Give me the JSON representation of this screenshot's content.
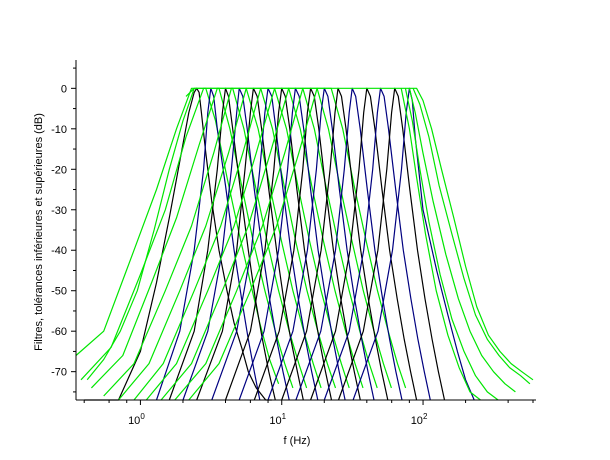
{
  "chart_data": {
    "type": "line",
    "title": "",
    "xlabel": "f (Hz)",
    "ylabel": "Filtres, tolérances inférieures et supérieures (dB)",
    "x_scale": "log",
    "xlim": [
      0.35,
      630
    ],
    "ylim": [
      -77,
      7
    ],
    "x_ticks": [
      {
        "value": 1,
        "base": "10",
        "exp": "0"
      },
      {
        "value": 10,
        "base": "10",
        "exp": "1"
      },
      {
        "value": 100,
        "base": "10",
        "exp": "2"
      }
    ],
    "y_ticks": [
      {
        "value": 0,
        "label": "0"
      },
      {
        "value": -10,
        "label": "-10"
      },
      {
        "value": -20,
        "label": "-20"
      },
      {
        "value": -30,
        "label": "-30"
      },
      {
        "value": -40,
        "label": "-40"
      },
      {
        "value": -50,
        "label": "-50"
      },
      {
        "value": -60,
        "label": "-60"
      },
      {
        "value": -70,
        "label": "-70"
      }
    ],
    "grid": false,
    "legend": "none",
    "center_frequencies": [
      2.5,
      3.15,
      4,
      5,
      6.3,
      8,
      10,
      12.5,
      16,
      20,
      25,
      31.5,
      40,
      50,
      63,
      80
    ],
    "series": [
      {
        "color": "#000000",
        "x": [
          0.4,
          0.7,
          1.0,
          1.3,
          1.6,
          1.9,
          2.2,
          2.4,
          2.5,
          2.6,
          2.7,
          2.9,
          3.2,
          3.6,
          4.1,
          4.6,
          5.2,
          5.8,
          6.6,
          7.7,
          8.5
        ],
        "y": [
          -77,
          -77,
          -65,
          -48,
          -32,
          -18,
          -6,
          -1,
          0,
          -1,
          -6,
          -16,
          -28,
          -40,
          -50,
          -58,
          -64,
          -70,
          -74,
          -77,
          -77
        ]
      },
      {
        "color": "#00e600",
        "x": [
          0.35,
          0.55,
          0.9,
          1.3,
          1.8,
          2.3,
          2.9,
          3.4,
          4.1,
          5.0,
          6.0,
          7.0,
          8.2,
          9.5
        ],
        "y": [
          -66,
          -60,
          -40,
          -25,
          -10,
          0,
          0,
          -8,
          -22,
          -36,
          -48,
          -58,
          -67,
          -73
        ]
      },
      {
        "color": "#000080",
        "x": [
          1.3,
          1.9,
          2.4,
          2.8,
          3.0,
          3.15,
          3.3,
          3.5,
          4.0,
          4.6,
          5.2,
          5.8,
          6.4,
          7.0
        ],
        "y": [
          -77,
          -60,
          -40,
          -20,
          -6,
          0,
          -2,
          -10,
          -24,
          -40,
          -52,
          -62,
          -70,
          -77
        ]
      },
      {
        "color": "#00e600",
        "x": [
          0.38,
          0.62,
          1.0,
          1.5,
          2.1,
          2.8,
          3.6,
          4.3,
          5.2,
          6.3,
          7.6,
          9.0,
          10.5,
          12.0
        ],
        "y": [
          -72,
          -64,
          -46,
          -30,
          -12,
          0,
          0,
          -10,
          -24,
          -38,
          -50,
          -60,
          -68,
          -74
        ]
      },
      {
        "color": "#000000",
        "x": [
          1.6,
          2.4,
          3.0,
          3.5,
          3.8,
          4.0,
          4.2,
          4.5,
          5.1,
          5.8,
          6.5,
          7.3,
          8.1,
          9.0
        ],
        "y": [
          -77,
          -60,
          -40,
          -20,
          -6,
          0,
          -2,
          -10,
          -25,
          -40,
          -52,
          -62,
          -70,
          -77
        ]
      },
      {
        "color": "#00e600",
        "x": [
          0.45,
          0.75,
          1.2,
          1.8,
          2.6,
          3.5,
          4.5,
          5.4,
          6.5,
          7.9,
          9.5,
          11.3,
          13.2,
          15.0
        ],
        "y": [
          -74,
          -66,
          -48,
          -32,
          -14,
          0,
          0,
          -10,
          -24,
          -38,
          -50,
          -60,
          -68,
          -74
        ]
      },
      {
        "color": "#000080",
        "x": [
          2.0,
          3.0,
          3.8,
          4.4,
          4.8,
          5.0,
          5.3,
          5.7,
          6.4,
          7.3,
          8.2,
          9.2,
          10.2,
          11.3
        ],
        "y": [
          -77,
          -60,
          -40,
          -20,
          -6,
          0,
          -2,
          -10,
          -25,
          -40,
          -52,
          -62,
          -70,
          -77
        ]
      },
      {
        "color": "#00e600",
        "x": [
          0.55,
          0.9,
          1.5,
          2.3,
          3.3,
          4.4,
          5.6,
          6.8,
          8.2,
          10.0,
          12.0,
          14.3,
          16.7,
          19.0
        ],
        "y": [
          -76,
          -68,
          -50,
          -34,
          -16,
          0,
          0,
          -10,
          -24,
          -38,
          -50,
          -60,
          -68,
          -74
        ]
      },
      {
        "color": "#000000",
        "x": [
          2.5,
          3.8,
          4.8,
          5.5,
          6.0,
          6.3,
          6.7,
          7.2,
          8.1,
          9.2,
          10.3,
          11.6,
          12.9,
          14.2
        ],
        "y": [
          -77,
          -60,
          -40,
          -20,
          -6,
          0,
          -2,
          -10,
          -25,
          -40,
          -52,
          -62,
          -70,
          -77
        ]
      },
      {
        "color": "#00e600",
        "x": [
          0.7,
          1.15,
          1.9,
          2.9,
          4.2,
          5.6,
          7.1,
          8.6,
          10.4,
          12.6,
          15.1,
          18.0,
          21.0,
          24.0
        ],
        "y": [
          -77,
          -68,
          -50,
          -34,
          -16,
          0,
          0,
          -10,
          -24,
          -38,
          -50,
          -60,
          -68,
          -74
        ]
      },
      {
        "color": "#000080",
        "x": [
          3.2,
          4.8,
          6.1,
          7.0,
          7.6,
          8.0,
          8.5,
          9.1,
          10.2,
          11.6,
          13.1,
          14.7,
          16.3,
          18.0
        ],
        "y": [
          -77,
          -60,
          -40,
          -20,
          -6,
          0,
          -2,
          -10,
          -25,
          -40,
          -52,
          -62,
          -70,
          -77
        ]
      },
      {
        "color": "#00e600",
        "x": [
          0.9,
          1.45,
          2.4,
          3.7,
          5.3,
          7.1,
          8.9,
          10.8,
          13.0,
          15.8,
          19.0,
          22.6,
          26.4,
          30.0
        ],
        "y": [
          -77,
          -68,
          -50,
          -34,
          -16,
          0,
          0,
          -10,
          -24,
          -38,
          -50,
          -60,
          -68,
          -74
        ]
      },
      {
        "color": "#000000",
        "x": [
          4.0,
          6.0,
          7.6,
          8.8,
          9.5,
          10.0,
          10.6,
          11.4,
          12.8,
          14.5,
          16.4,
          18.4,
          20.4,
          22.5
        ],
        "y": [
          -77,
          -60,
          -40,
          -20,
          -6,
          0,
          -2,
          -10,
          -25,
          -40,
          -52,
          -62,
          -70,
          -77
        ]
      },
      {
        "color": "#00e600",
        "x": [
          1.1,
          1.8,
          3.0,
          4.6,
          6.6,
          8.9,
          11.2,
          13.5,
          16.3,
          19.8,
          23.8,
          28.3,
          33.0,
          37.6
        ],
        "y": [
          -77,
          -68,
          -50,
          -34,
          -16,
          0,
          0,
          -10,
          -24,
          -38,
          -50,
          -60,
          -68,
          -74
        ]
      },
      {
        "color": "#000080",
        "x": [
          5.0,
          7.5,
          9.5,
          11.0,
          11.9,
          12.5,
          13.3,
          14.3,
          16.0,
          18.1,
          20.5,
          23.0,
          25.5,
          28.1
        ],
        "y": [
          -77,
          -60,
          -40,
          -20,
          -6,
          0,
          -2,
          -10,
          -25,
          -40,
          -52,
          -62,
          -70,
          -77
        ]
      },
      {
        "color": "#00e600",
        "x": [
          1.4,
          2.3,
          3.8,
          5.8,
          8.3,
          11.2,
          14.1,
          17.0,
          20.5,
          25.0,
          30.0,
          35.7,
          41.6,
          47.4
        ],
        "y": [
          -77,
          -68,
          -50,
          -34,
          -16,
          0,
          0,
          -10,
          -24,
          -38,
          -50,
          -60,
          -68,
          -74
        ]
      },
      {
        "color": "#000000",
        "x": [
          6.4,
          9.6,
          12.2,
          14.1,
          15.2,
          16.0,
          17.0,
          18.3,
          20.5,
          23.2,
          26.2,
          29.4,
          32.6,
          36.0
        ],
        "y": [
          -77,
          -60,
          -40,
          -20,
          -6,
          0,
          -2,
          -10,
          -25,
          -40,
          -52,
          -62,
          -70,
          -77
        ]
      },
      {
        "color": "#00e600",
        "x": [
          1.75,
          2.9,
          4.8,
          7.3,
          10.5,
          14.1,
          17.8,
          21.4,
          25.8,
          31.5,
          37.8,
          45.0,
          52.4,
          59.7
        ],
        "y": [
          -77,
          -68,
          -50,
          -34,
          -16,
          0,
          0,
          -10,
          -24,
          -38,
          -50,
          -60,
          -68,
          -74
        ]
      },
      {
        "color": "#000080",
        "x": [
          8.0,
          12.0,
          15.2,
          17.6,
          19.0,
          20.0,
          21.2,
          22.8,
          25.6,
          29.0,
          32.8,
          36.8,
          40.8,
          45.0
        ],
        "y": [
          -77,
          -60,
          -40,
          -20,
          -6,
          0,
          -2,
          -10,
          -25,
          -40,
          -52,
          -62,
          -70,
          -77
        ]
      },
      {
        "color": "#00e600",
        "x": [
          2.2,
          3.6,
          6.0,
          9.2,
          13.2,
          17.8,
          22.4,
          27.0,
          32.5,
          39.7,
          47.6,
          56.7,
          66.0,
          75.2
        ],
        "y": [
          -77,
          -68,
          -50,
          -34,
          -16,
          0,
          0,
          -10,
          -24,
          -38,
          -50,
          -60,
          -68,
          -74
        ]
      },
      {
        "color": "#000000",
        "x": [
          10.0,
          15.0,
          19.0,
          22.0,
          23.8,
          25.0,
          26.5,
          28.5,
          32.0,
          36.2,
          41.0,
          46.0,
          51.0,
          56.3
        ],
        "y": [
          -77,
          -60,
          -40,
          -20,
          -6,
          0,
          -2,
          -10,
          -25,
          -40,
          -52,
          -62,
          -70,
          -77
        ]
      },
      {
        "color": "#000080",
        "x": [
          12.6,
          18.9,
          24.0,
          27.7,
          30.0,
          31.5,
          33.4,
          35.9,
          40.3,
          45.6,
          51.7,
          58.0,
          64.3,
          71.0
        ],
        "y": [
          -77,
          -60,
          -40,
          -20,
          -6,
          0,
          -2,
          -10,
          -25,
          -40,
          -52,
          -62,
          -70,
          -77
        ]
      },
      {
        "color": "#000000",
        "x": [
          16.0,
          24.0,
          30.4,
          35.2,
          38.0,
          40.0,
          42.4,
          45.6,
          51.2,
          58.0,
          65.6,
          73.6,
          81.6,
          90.0
        ],
        "y": [
          -77,
          -60,
          -40,
          -20,
          -6,
          0,
          -2,
          -10,
          -25,
          -40,
          -52,
          -62,
          -70,
          -77
        ]
      },
      {
        "color": "#000080",
        "x": [
          20.0,
          30.0,
          38.0,
          44.0,
          47.5,
          50.0,
          53.0,
          57.0,
          64.0,
          72.5,
          82.0,
          92.0,
          102.0,
          112.5
        ],
        "y": [
          -77,
          -60,
          -40,
          -20,
          -6,
          0,
          -2,
          -10,
          -25,
          -40,
          -52,
          -62,
          -70,
          -77
        ]
      },
      {
        "color": "#000000",
        "x": [
          25.2,
          37.8,
          47.9,
          55.4,
          59.9,
          63.0,
          66.8,
          71.8,
          80.6,
          91.4,
          103.3,
          115.9,
          128.5,
          141.8
        ],
        "y": [
          -77,
          -60,
          -40,
          -20,
          -6,
          0,
          -2,
          -10,
          -25,
          -40,
          -52,
          -62,
          -70,
          -77
        ]
      },
      {
        "color": "#000080",
        "x": [
          32.0,
          48.0,
          60.8,
          70.4,
          76.0,
          80.0,
          84.0,
          88.0,
          100.0,
          125.0,
          150.0,
          175.0,
          200.0,
          230.0
        ],
        "y": [
          -77,
          -60,
          -40,
          -20,
          -6,
          0,
          -3,
          -12,
          -30,
          -45,
          -56,
          -65,
          -72,
          -77
        ]
      },
      {
        "color": "#00e600",
        "x": [
          2.1,
          2.4,
          80.0,
          90.0,
          100.0,
          115.0,
          135.0,
          165.0,
          200.0,
          240.0,
          290.0,
          350.0,
          420.0,
          500.0,
          600.0
        ],
        "y": [
          -2,
          0,
          0,
          0,
          -3,
          -10,
          -20,
          -32,
          -44,
          -54,
          -61,
          -65,
          -68,
          -70,
          -72
        ]
      },
      {
        "color": "#00e600",
        "x": [
          85.0,
          95.0,
          110.0,
          130.0,
          160.0,
          195.0,
          235.0,
          285.0,
          345.0,
          410.0,
          490.0,
          570.0
        ],
        "y": [
          0,
          -4,
          -12,
          -24,
          -36,
          -47,
          -56,
          -62,
          -66,
          -69,
          -71,
          -73
        ]
      },
      {
        "color": "#00e600",
        "x": [
          80.0,
          88.0,
          100.0,
          118.0,
          145.0,
          178.0,
          215.0,
          260.0,
          315.0,
          380.0,
          450.0
        ],
        "y": [
          0,
          -6,
          -16,
          -28,
          -41,
          -52,
          -60,
          -66,
          -70,
          -73,
          -75
        ]
      },
      {
        "color": "#00e600",
        "x": [
          75.0,
          84.0,
          95.0,
          110.0,
          132.0,
          160.0,
          195.0,
          235.0,
          285.0,
          340.0
        ],
        "y": [
          0,
          -8,
          -20,
          -33,
          -46,
          -57,
          -65,
          -71,
          -75,
          -77
        ]
      },
      {
        "color": "#00e600",
        "x": [
          70.0,
          80.0,
          90.0,
          104.0,
          124.0,
          150.0,
          180.0,
          215.0,
          255.0
        ],
        "y": [
          0,
          -10,
          -22,
          -36,
          -50,
          -61,
          -69,
          -75,
          -77
        ]
      },
      {
        "color": "#00e600",
        "x": [
          2.4,
          2.3,
          2.0,
          1.6,
          1.25,
          0.95,
          0.72,
          0.55,
          0.42
        ],
        "y": [
          0,
          -2,
          -8,
          -20,
          -35,
          -50,
          -60,
          -67,
          -72
        ]
      }
    ]
  }
}
